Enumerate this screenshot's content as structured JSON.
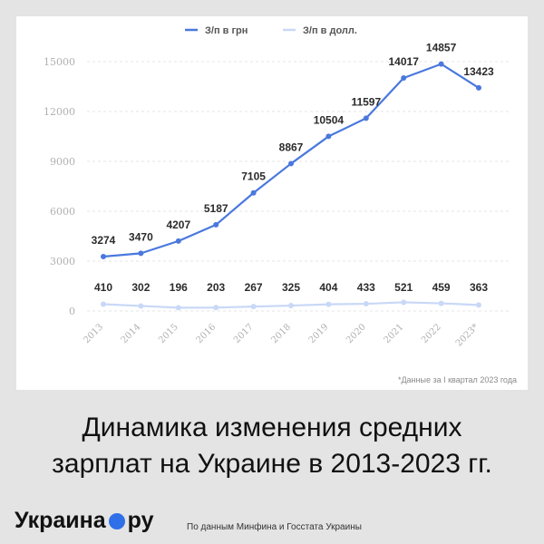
{
  "chart_data": {
    "type": "line",
    "legend_position": "top-center",
    "grid": true,
    "categories": [
      "2013",
      "2014",
      "2015",
      "2016",
      "2017",
      "2018",
      "2019",
      "2020",
      "2021",
      "2022",
      "2023*"
    ],
    "series": [
      {
        "name": "З/п в грн",
        "color": "#4a78de",
        "values": [
          3274,
          3470,
          4207,
          5187,
          7105,
          8867,
          10504,
          11597,
          14017,
          14857,
          13423
        ]
      },
      {
        "name": "З/п в долл.",
        "color": "#c9d8f7",
        "values": [
          410,
          302,
          196,
          203,
          267,
          325,
          404,
          433,
          521,
          459,
          363
        ]
      }
    ],
    "yticks": [
      0,
      3000,
      6000,
      9000,
      12000,
      15000
    ],
    "ylim": [
      0,
      15000
    ],
    "footnote": "*Данные за I квартал 2023 года"
  },
  "headline": {
    "line1": "Динамика изменения средних",
    "line2": "зарплат на Украине в 2013-2023 гг."
  },
  "brand": {
    "left": "Украина",
    "right": "ру"
  },
  "source": "По данным Минфина и Госстата Украины"
}
